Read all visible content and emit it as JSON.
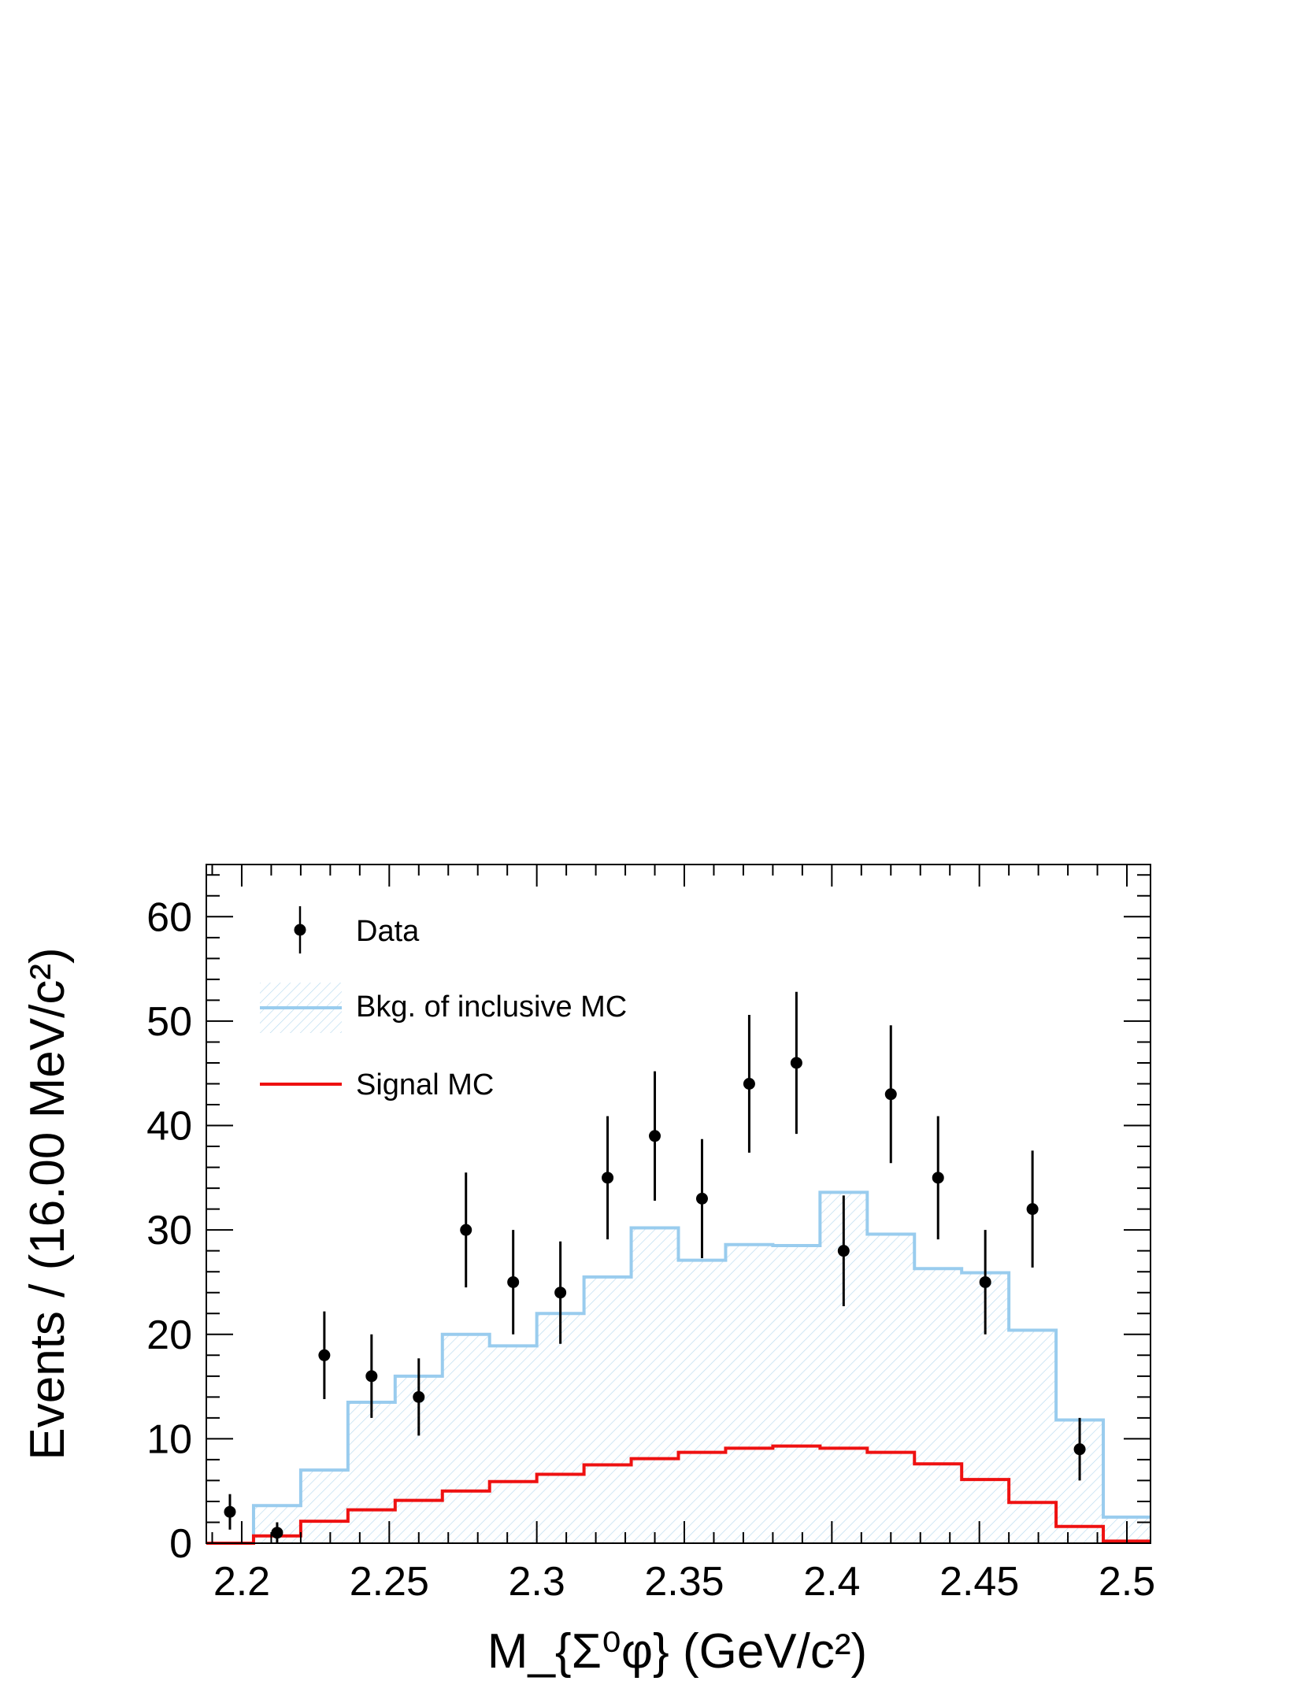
{
  "chart_data": {
    "type": "bar",
    "ylabel": "Events / (16.00 MeV/c²)",
    "xlabel": "M_{Σ⁰φ} (GeV/c²)",
    "xlim": [
      2.188,
      2.508
    ],
    "ylim": [
      0,
      65
    ],
    "bin_width": 0.016,
    "bin_edges": [
      2.188,
      2.204,
      2.22,
      2.236,
      2.252,
      2.268,
      2.284,
      2.3,
      2.316,
      2.332,
      2.348,
      2.364,
      2.38,
      2.396,
      2.412,
      2.428,
      2.444,
      2.46,
      2.476,
      2.492,
      2.508
    ],
    "x_ticks": [
      "2.2",
      "2.25",
      "2.3",
      "2.35",
      "2.4",
      "2.45",
      "2.5"
    ],
    "x_tick_values": [
      2.2,
      2.25,
      2.3,
      2.35,
      2.4,
      2.45,
      2.5
    ],
    "y_ticks": [
      "0",
      "10",
      "20",
      "30",
      "40",
      "50",
      "60"
    ],
    "y_tick_values": [
      0,
      10,
      20,
      30,
      40,
      50,
      60
    ],
    "series": [
      {
        "name": "Data",
        "kind": "points",
        "color": "#000000",
        "values": [
          3,
          1,
          18,
          16,
          14,
          30,
          25,
          24,
          35,
          39,
          33,
          44,
          46,
          28,
          43,
          35,
          25,
          32,
          9,
          null
        ],
        "errors": [
          1.7,
          1.0,
          4.2,
          4.0,
          3.7,
          5.5,
          5.0,
          4.9,
          5.9,
          6.2,
          5.7,
          6.6,
          6.8,
          5.3,
          6.6,
          5.9,
          5.0,
          5.6,
          3.0,
          null
        ]
      },
      {
        "name": "Bkg. of inclusive MC",
        "kind": "step-filled",
        "color": "#99ccee",
        "values": [
          0,
          3.6,
          7.0,
          13.5,
          16.0,
          20.0,
          18.9,
          22.0,
          25.5,
          30.2,
          27.1,
          28.6,
          28.5,
          33.6,
          29.6,
          26.3,
          25.9,
          20.4,
          11.8,
          2.5
        ]
      },
      {
        "name": "Signal MC",
        "kind": "step",
        "color": "#ee1111",
        "values": [
          0,
          0.7,
          2.1,
          3.2,
          4.1,
          5.0,
          5.9,
          6.6,
          7.5,
          8.1,
          8.7,
          9.1,
          9.3,
          9.1,
          8.7,
          7.6,
          6.1,
          3.9,
          1.6,
          0.2
        ]
      }
    ],
    "legend": {
      "placement": "top-left",
      "entries": [
        "Data",
        "Bkg. of inclusive MC",
        "Signal MC"
      ]
    },
    "grid": false
  }
}
